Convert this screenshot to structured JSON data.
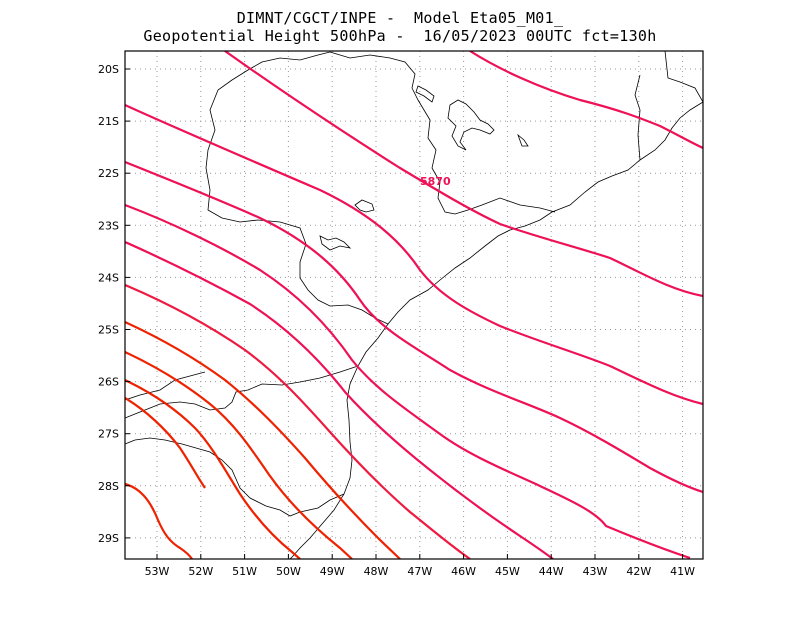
{
  "title": {
    "line1": "DIMNT/CGCT/INPE -  Model Eta05_M01_",
    "line2": "Geopotential Height 500hPa -  16/05/2023 00UTC fct=130h"
  },
  "map": {
    "lon_range": [
      -53.6,
      -40.5
    ],
    "lat_range": [
      -29.4,
      -19.7
    ],
    "lat_ticks": [
      "20S",
      "21S",
      "22S",
      "23S",
      "24S",
      "25S",
      "26S",
      "27S",
      "28S",
      "29S"
    ],
    "lon_ticks": [
      "53W",
      "52W",
      "51W",
      "50W",
      "49W",
      "48W",
      "47W",
      "46W",
      "45W",
      "44W",
      "43W",
      "42W",
      "41W"
    ],
    "grid": "dotted",
    "contour_label": "5870",
    "colors": {
      "contour_magenta": "#ee1155",
      "contour_red": "#ee2200",
      "coastline": "#000000",
      "grid": "#999999"
    }
  }
}
